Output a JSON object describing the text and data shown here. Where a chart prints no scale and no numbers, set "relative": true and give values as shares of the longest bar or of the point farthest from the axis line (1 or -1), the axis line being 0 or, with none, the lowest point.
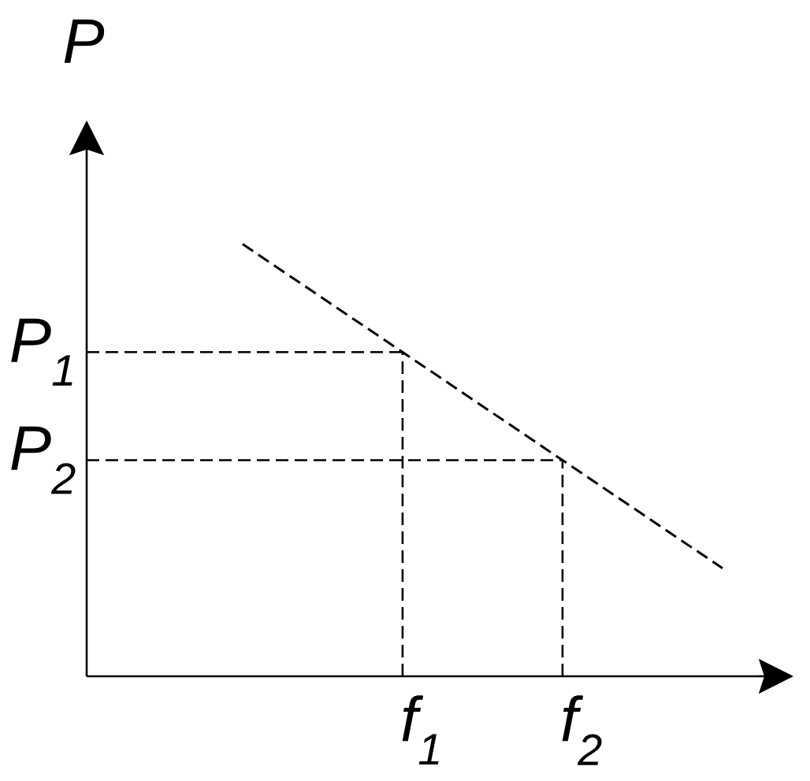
{
  "chart_data": {
    "type": "line",
    "ylabel": "P",
    "relative": true,
    "line_style": "dashed",
    "categories": [
      null,
      "f$_{1}$",
      "f$_{2}$",
      null
    ],
    "series": [
      {
        "color": "#000000",
        "values": [
          1,
          0.75,
          0.5,
          0.25
        ]
      }
    ],
    "ref_lines": [
      {
        "axis": "y",
        "value": 0.75,
        "label": "P$_{1}$",
        "line_style": "dashed",
        "color": "#000000"
      },
      {
        "axis": "y",
        "value": 0.5,
        "label": "P$_{2}$",
        "line_style": "dashed",
        "color": "#000000"
      },
      {
        "axis": "x",
        "value": "f$_{1}$",
        "line_style": "dashed",
        "color": "#000000"
      },
      {
        "axis": "x",
        "value": "f$_{2}$",
        "line_style": "dashed",
        "color": "#000000"
      }
    ]
  }
}
